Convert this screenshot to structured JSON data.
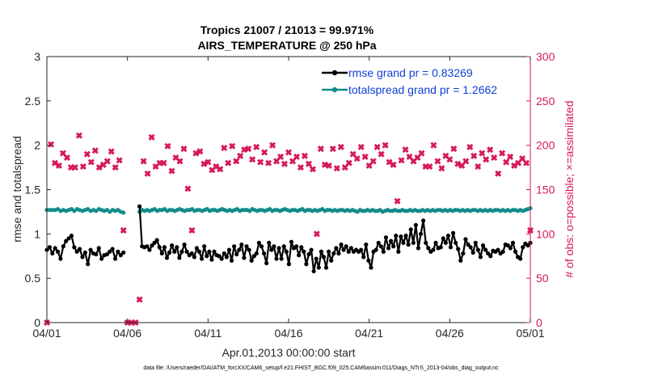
{
  "chart_data": {
    "type": "line",
    "title": "Tropics 21007 / 21013 = 99.971%",
    "subtitle": "AIRS_TEMPERATURE @ 250 hPa",
    "xlabel": "Apr.01,2013 00:00:00 start",
    "ylabel": "rmse and totalspread",
    "ylabel_right": "# of obs: o=possible; ×=assimilated",
    "xlim": [
      0,
      30
    ],
    "ylim": [
      0,
      3
    ],
    "ylim_right": [
      0,
      300
    ],
    "x_ticks": [
      0,
      5,
      10,
      15,
      20,
      25,
      30
    ],
    "x_tick_labels": [
      "04/01",
      "04/06",
      "04/11",
      "04/16",
      "04/21",
      "04/26",
      "05/01"
    ],
    "y_ticks": [
      0,
      0.5,
      1,
      1.5,
      2,
      2.5,
      3
    ],
    "y_tick_labels": [
      "0",
      "0.5",
      "1",
      "1.5",
      "2",
      "2.5",
      "3"
    ],
    "y_ticks_right": [
      0,
      50,
      100,
      150,
      200,
      250,
      300
    ],
    "y_tick_labels_right": [
      "0",
      "50",
      "100",
      "150",
      "200",
      "250",
      "300"
    ],
    "grid": false,
    "legend_position": "top-right",
    "legend_entries": [
      "rmse grand pr = 0.83269",
      "totalspread grand pr = 1.2662"
    ],
    "colors": {
      "rmse": "#000000",
      "spread": "#138b8b",
      "obs": "#d6195b",
      "legend_text": "#0f3fd6"
    },
    "footnote": "data file: /Users/raeder/DAI/ATM_forcXX/CAM6_setup/f.e21.FHIST_BGC.f09_025.CAM6assim.011/Diags_NTrS_2013-04/obs_diag_output.nc",
    "gap": [
      4.75,
      5.75
    ],
    "rmse": {
      "name": "rmse grand pr = 0.83269",
      "values_before_gap": [
        0.82,
        0.85,
        0.78,
        0.84,
        0.8,
        0.72,
        0.86,
        0.92,
        0.95,
        0.98,
        0.85,
        0.8,
        0.83,
        0.74,
        0.79,
        0.66,
        0.82,
        0.78,
        0.77,
        0.84,
        0.72,
        0.76,
        0.77,
        0.8,
        0.83,
        0.72,
        0.8,
        0.76,
        0.79
      ],
      "values_after_gap": [
        1.31,
        0.86,
        0.85,
        0.86,
        0.82,
        0.87,
        0.9,
        0.93,
        0.85,
        0.78,
        0.85,
        0.73,
        0.79,
        0.87,
        0.8,
        0.85,
        0.73,
        0.8,
        0.88,
        0.8,
        0.76,
        0.78,
        0.74,
        0.84,
        0.8,
        0.72,
        0.86,
        0.75,
        0.8,
        0.71,
        0.8,
        0.76,
        0.75,
        0.72,
        0.78,
        0.74,
        0.82,
        0.7,
        0.86,
        0.77,
        0.82,
        0.88,
        0.73,
        0.86,
        0.82,
        0.7,
        0.75,
        0.78,
        0.9,
        0.86,
        0.78,
        0.67,
        0.9,
        0.82,
        0.86,
        0.72,
        0.84,
        0.72,
        0.86,
        0.8,
        0.66,
        0.91,
        0.84,
        0.86,
        0.76,
        0.85,
        0.8,
        0.66,
        0.77,
        0.82,
        0.58,
        0.72,
        0.62,
        0.8,
        0.74,
        0.62,
        0.8,
        0.7,
        0.78,
        0.84,
        0.78,
        0.88,
        0.82,
        0.86,
        0.8,
        0.84,
        0.8,
        0.82,
        0.8,
        0.82,
        0.74,
        0.88,
        0.7,
        0.62,
        0.8,
        0.82,
        0.9,
        0.86,
        0.8,
        0.96,
        0.84,
        0.92,
        0.86,
        0.98,
        0.8,
        0.97,
        0.9,
        0.98,
        0.88,
        1.05,
        0.9,
        1.1,
        0.84,
        1.0,
        1.15,
        0.9,
        0.84,
        0.8,
        0.82,
        0.9,
        0.84,
        0.85,
        0.95,
        0.9,
        0.98,
        0.85,
        1.01,
        0.9,
        0.83,
        0.7,
        0.78,
        0.94,
        0.88,
        0.85,
        0.79,
        0.9,
        0.82,
        0.74,
        0.87,
        0.82,
        0.78,
        0.75,
        0.81,
        0.8,
        0.82,
        0.78,
        0.8,
        0.88,
        0.87,
        0.84,
        0.9,
        0.8,
        0.74,
        0.72,
        0.85,
        0.89,
        0.87,
        0.9
      ]
    },
    "spread": {
      "name": "totalspread grand pr = 1.2662",
      "values_before_gap": [
        1.27,
        1.27,
        1.27,
        1.27,
        1.28,
        1.26,
        1.27,
        1.26,
        1.27,
        1.28,
        1.26,
        1.28,
        1.27,
        1.26,
        1.27,
        1.28,
        1.26,
        1.27,
        1.26,
        1.28,
        1.27,
        1.26,
        1.27,
        1.25,
        1.27,
        1.26,
        1.27,
        1.25,
        1.24
      ],
      "values_after_gap": [
        1.25,
        1.27,
        1.26,
        1.27,
        1.26,
        1.27,
        1.28,
        1.26,
        1.27,
        1.27,
        1.28,
        1.26,
        1.27,
        1.27,
        1.26,
        1.27,
        1.28,
        1.27,
        1.26,
        1.27,
        1.27,
        1.28,
        1.26,
        1.27,
        1.27,
        1.26,
        1.27,
        1.28,
        1.26,
        1.27,
        1.27,
        1.26,
        1.27,
        1.28,
        1.27,
        1.26,
        1.27,
        1.26,
        1.27,
        1.28,
        1.26,
        1.27,
        1.27,
        1.27,
        1.26,
        1.28,
        1.27,
        1.26,
        1.27,
        1.27,
        1.26,
        1.27,
        1.28,
        1.26,
        1.27,
        1.27,
        1.26,
        1.27,
        1.28,
        1.27,
        1.26,
        1.27,
        1.27,
        1.26,
        1.27,
        1.28,
        1.26,
        1.27,
        1.27,
        1.26,
        1.27,
        1.26,
        1.27,
        1.28,
        1.26,
        1.27,
        1.27,
        1.26,
        1.27,
        1.26,
        1.27,
        1.27,
        1.26,
        1.27,
        1.26,
        1.27,
        1.26,
        1.25,
        1.27,
        1.26,
        1.26,
        1.27,
        1.26,
        1.27,
        1.26,
        1.26,
        1.27,
        1.25,
        1.26,
        1.27,
        1.26,
        1.26,
        1.27,
        1.26,
        1.26,
        1.27,
        1.26,
        1.26,
        1.27,
        1.26,
        1.27,
        1.26,
        1.26,
        1.27,
        1.26,
        1.27,
        1.26,
        1.27,
        1.26,
        1.27,
        1.27,
        1.26,
        1.27,
        1.26,
        1.27,
        1.26,
        1.27,
        1.27,
        1.26,
        1.27,
        1.26,
        1.27,
        1.26,
        1.27,
        1.27,
        1.26,
        1.27,
        1.26,
        1.27,
        1.26,
        1.27,
        1.26,
        1.27,
        1.27,
        1.26,
        1.27,
        1.26,
        1.27,
        1.26,
        1.27,
        1.27,
        1.26,
        1.27,
        1.26,
        1.27,
        1.28,
        1.29
      ]
    },
    "obs_counts": {
      "name": "# of obs (possible / assimilated)",
      "x": [
        0.0,
        0.25,
        0.5,
        0.75,
        1.0,
        1.25,
        1.5,
        1.75,
        2.0,
        2.25,
        2.5,
        2.75,
        3.0,
        3.25,
        3.5,
        3.75,
        4.0,
        4.25,
        4.5,
        4.75,
        5.0,
        5.25,
        5.5,
        5.75,
        6.0,
        6.25,
        6.5,
        6.75,
        7.0,
        7.25,
        7.5,
        7.75,
        8.0,
        8.25,
        8.5,
        8.75,
        9.0,
        9.25,
        9.5,
        9.75,
        10.0,
        10.25,
        10.5,
        10.75,
        11.0,
        11.25,
        11.5,
        11.75,
        12.0,
        12.25,
        12.5,
        12.75,
        13.0,
        13.25,
        13.5,
        13.75,
        14.0,
        14.25,
        14.5,
        14.75,
        15.0,
        15.25,
        15.5,
        15.75,
        16.0,
        16.25,
        16.5,
        16.75,
        17.0,
        17.25,
        17.5,
        17.75,
        18.0,
        18.25,
        18.5,
        18.75,
        19.0,
        19.25,
        19.5,
        19.75,
        20.0,
        20.25,
        20.5,
        20.75,
        21.0,
        21.25,
        21.5,
        21.75,
        22.0,
        22.25,
        22.5,
        22.75,
        23.0,
        23.25,
        23.5,
        23.75,
        24.0,
        24.25,
        24.5,
        24.75,
        25.0,
        25.25,
        25.5,
        25.75,
        26.0,
        26.25,
        26.5,
        26.75,
        27.0,
        27.25,
        27.5,
        27.75,
        28.0,
        28.25,
        28.5,
        28.75,
        29.0,
        29.25,
        29.5,
        29.75,
        30.0
      ],
      "values": [
        0,
        201,
        180,
        177,
        191,
        186,
        175,
        175,
        211,
        176,
        190,
        181,
        194,
        175,
        178,
        182,
        193,
        175,
        183,
        104,
        0,
        0,
        0,
        26,
        182,
        168,
        209,
        176,
        180,
        180,
        199,
        171,
        186,
        182,
        196,
        151,
        104,
        191,
        193,
        179,
        181,
        172,
        176,
        173,
        197,
        180,
        199,
        182,
        188,
        195,
        196,
        184,
        198,
        181,
        192,
        180,
        200,
        182,
        187,
        179,
        192,
        182,
        187,
        175,
        188,
        179,
        173,
        100,
        196,
        178,
        177,
        196,
        174,
        198,
        175,
        180,
        190,
        185,
        198,
        187,
        177,
        182,
        198,
        190,
        200,
        181,
        178,
        137,
        183,
        195,
        187,
        182,
        186,
        191,
        176,
        176,
        200,
        182,
        174,
        188,
        184,
        196,
        179,
        177,
        182,
        198,
        188,
        176,
        191,
        184,
        195,
        186,
        168,
        191,
        181,
        187,
        177,
        180,
        185,
        180,
        104
      ]
    }
  }
}
